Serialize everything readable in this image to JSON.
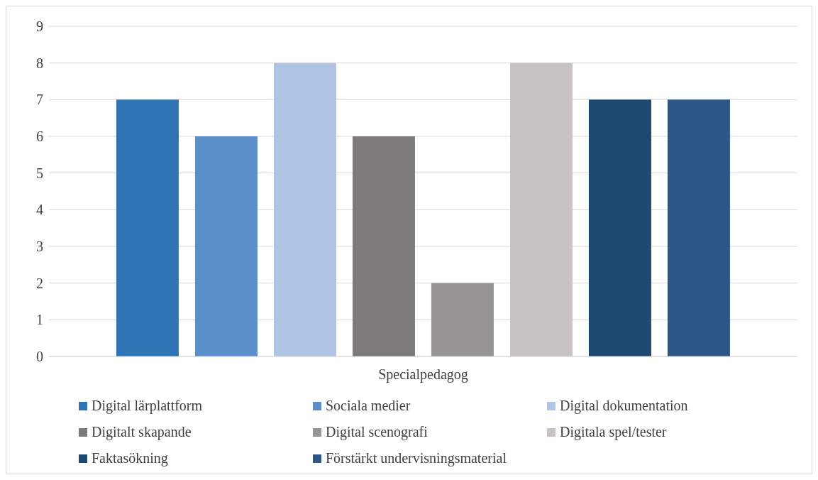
{
  "chart_data": {
    "type": "bar",
    "categories": [
      "Specialpedagog"
    ],
    "series": [
      {
        "name": "Digital lärplattform",
        "color": "#2e75b6",
        "values": [
          7
        ]
      },
      {
        "name": "Sociala medier",
        "color": "#5b8fc9",
        "values": [
          6
        ]
      },
      {
        "name": "Digital dokumentation",
        "color": "#b0c4e4",
        "values": [
          8
        ]
      },
      {
        "name": "Digitalt skapande",
        "color": "#7b7979",
        "values": [
          6
        ]
      },
      {
        "name": "Digital scenografi",
        "color": "#989595",
        "values": [
          2
        ]
      },
      {
        "name": "Digitala spel/tester",
        "color": "#c7c3c3",
        "values": [
          8
        ]
      },
      {
        "name": "Faktasökning",
        "color": "#1f4a70",
        "values": [
          7
        ]
      },
      {
        "name": "Förstärkt undervisningsmaterial",
        "color": "#2e5686",
        "values": [
          7
        ]
      }
    ],
    "ylim": [
      0,
      9
    ],
    "yticks": [
      0,
      1,
      2,
      3,
      4,
      5,
      6,
      7,
      8,
      9
    ],
    "grid": "y",
    "legend": "bottom"
  }
}
